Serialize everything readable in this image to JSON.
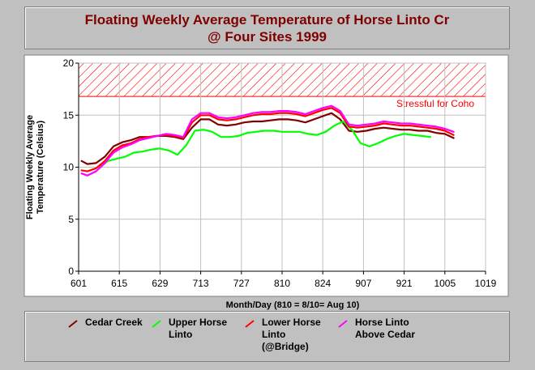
{
  "chart_data": {
    "type": "line",
    "title": "Floating Weekly Average Temperature of Horse Linto Cr",
    "subtitle": "@ Four Sites 1999",
    "xlabel": "Month/Day (810 = 8/10= Aug 10)",
    "ylabel": "Floating Weekly Average Temperature (Celsius)",
    "ylim": [
      0,
      20
    ],
    "yticks": [
      "0",
      "5",
      "10",
      "15",
      "20"
    ],
    "xticks": [
      "601",
      "615",
      "629",
      "713",
      "727",
      "810",
      "824",
      "907",
      "921",
      "1005",
      "1019"
    ],
    "xlim": [
      0,
      140
    ],
    "grid": true,
    "threshold_band": {
      "label": "Stressful for Coho",
      "from": 16.8,
      "to": 20,
      "color": "#ff0000"
    },
    "series": [
      {
        "name": "Cedar Creek",
        "color": "#800000",
        "x": [
          1,
          3,
          6,
          9,
          12,
          15,
          18,
          21,
          24,
          27,
          30,
          33,
          36,
          39,
          42,
          45,
          48,
          51,
          54,
          57,
          60,
          63,
          66,
          69,
          72,
          75,
          78,
          81,
          84,
          87,
          90,
          93,
          96,
          99,
          102,
          105,
          108,
          111,
          114,
          117,
          120,
          123,
          126,
          129
        ],
        "y": [
          10.6,
          10.3,
          10.4,
          11.0,
          12.0,
          12.4,
          12.6,
          12.9,
          12.9,
          13.0,
          13.0,
          12.9,
          12.7,
          13.8,
          14.6,
          14.6,
          14.1,
          14.0,
          14.1,
          14.3,
          14.4,
          14.4,
          14.5,
          14.6,
          14.6,
          14.5,
          14.3,
          14.6,
          14.9,
          15.2,
          14.6,
          13.5,
          13.4,
          13.5,
          13.7,
          13.8,
          13.7,
          13.6,
          13.6,
          13.5,
          13.5,
          13.3,
          13.2,
          12.8
        ]
      },
      {
        "name": "Upper Horse Linto",
        "color": "#00ff00",
        "x": [
          7,
          10,
          13,
          16,
          19,
          22,
          25,
          28,
          31,
          34,
          37,
          40,
          43,
          46,
          49,
          52,
          55,
          58,
          61,
          64,
          67,
          70,
          73,
          76,
          79,
          82,
          85,
          88,
          91,
          94,
          97,
          100,
          103,
          106,
          109,
          112,
          115,
          118,
          121
        ],
        "y": [
          9.9,
          10.6,
          10.8,
          11.0,
          11.4,
          11.5,
          11.7,
          11.8,
          11.6,
          11.2,
          12.1,
          13.5,
          13.6,
          13.4,
          12.9,
          12.9,
          13.0,
          13.3,
          13.4,
          13.5,
          13.5,
          13.4,
          13.4,
          13.4,
          13.2,
          13.1,
          13.4,
          14.0,
          14.4,
          13.6,
          12.3,
          12.0,
          12.3,
          12.7,
          13.0,
          13.2,
          13.1,
          13.0,
          12.9
        ]
      },
      {
        "name": "Lower Horse Linto (@Bridge)",
        "color": "#ff0000",
        "x": [
          1,
          3,
          6,
          9,
          12,
          15,
          18,
          21,
          24,
          27,
          30,
          33,
          36,
          39,
          42,
          45,
          48,
          51,
          54,
          57,
          60,
          63,
          66,
          69,
          72,
          75,
          78,
          81,
          84,
          87,
          90,
          93,
          96,
          99,
          102,
          105,
          108,
          111,
          114,
          117,
          120,
          123,
          126,
          129
        ],
        "y": [
          9.7,
          9.6,
          9.9,
          10.6,
          11.6,
          12.1,
          12.3,
          12.7,
          12.9,
          13.0,
          13.1,
          13.0,
          12.8,
          14.3,
          15.0,
          15.0,
          14.6,
          14.5,
          14.6,
          14.8,
          15.0,
          15.1,
          15.1,
          15.2,
          15.2,
          15.1,
          14.9,
          15.2,
          15.5,
          15.7,
          15.2,
          13.9,
          13.8,
          13.9,
          14.0,
          14.2,
          14.1,
          14.0,
          14.0,
          13.9,
          13.8,
          13.7,
          13.5,
          13.1
        ]
      },
      {
        "name": "Horse Linto Above Cedar",
        "color": "#ff00ff",
        "x": [
          1,
          3,
          6,
          9,
          12,
          15,
          18,
          21,
          24,
          27,
          30,
          33,
          36,
          39,
          42,
          45,
          48,
          51,
          54,
          57,
          60,
          63,
          66,
          69,
          72,
          75,
          78,
          81,
          84,
          87,
          90,
          93,
          96,
          99,
          102,
          105,
          108,
          111,
          114,
          117,
          120,
          123,
          126,
          129
        ],
        "y": [
          9.4,
          9.2,
          9.6,
          10.4,
          11.4,
          11.9,
          12.2,
          12.6,
          12.8,
          13.0,
          13.2,
          13.1,
          12.9,
          14.6,
          15.2,
          15.2,
          14.8,
          14.7,
          14.8,
          15.0,
          15.2,
          15.3,
          15.3,
          15.4,
          15.4,
          15.3,
          15.1,
          15.4,
          15.7,
          15.9,
          15.4,
          14.1,
          14.0,
          14.1,
          14.2,
          14.4,
          14.3,
          14.2,
          14.2,
          14.1,
          14.0,
          13.9,
          13.7,
          13.4
        ]
      }
    ]
  },
  "legend": [
    {
      "label": "Cedar Creek",
      "color": "#800000"
    },
    {
      "label": "Upper Horse Linto",
      "color": "#00ff00"
    },
    {
      "label": "Lower Horse Linto (@Bridge)",
      "color": "#ff0000"
    },
    {
      "label": "Horse Linto Above Cedar",
      "color": "#ff00ff"
    }
  ]
}
